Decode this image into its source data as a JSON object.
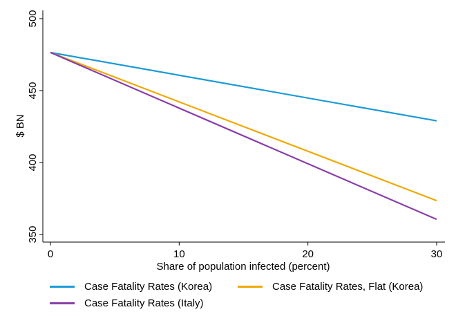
{
  "chart_data": {
    "type": "line",
    "title": "",
    "xlabel": "Share of population infected (percent)",
    "ylabel": "$ BN",
    "xlim": [
      0,
      30
    ],
    "ylim": [
      350,
      500
    ],
    "xticks": [
      0,
      10,
      20,
      30
    ],
    "yticks": [
      350,
      400,
      450,
      500
    ],
    "grid": false,
    "legend_position": "bottom",
    "series": [
      {
        "name": "Case Fatality Rates (Korea)",
        "color": "#1a9ad6",
        "x": [
          0,
          30
        ],
        "values": [
          476.5,
          429
        ]
      },
      {
        "name": "Case Fatality Rates, Flat (Korea)",
        "color": "#f0a800",
        "x": [
          0,
          30
        ],
        "values": [
          476.5,
          373.5
        ]
      },
      {
        "name": "Case Fatality Rates (Italy)",
        "color": "#8a3fa8",
        "x": [
          0,
          30
        ],
        "values": [
          476.5,
          360.5
        ]
      }
    ]
  }
}
